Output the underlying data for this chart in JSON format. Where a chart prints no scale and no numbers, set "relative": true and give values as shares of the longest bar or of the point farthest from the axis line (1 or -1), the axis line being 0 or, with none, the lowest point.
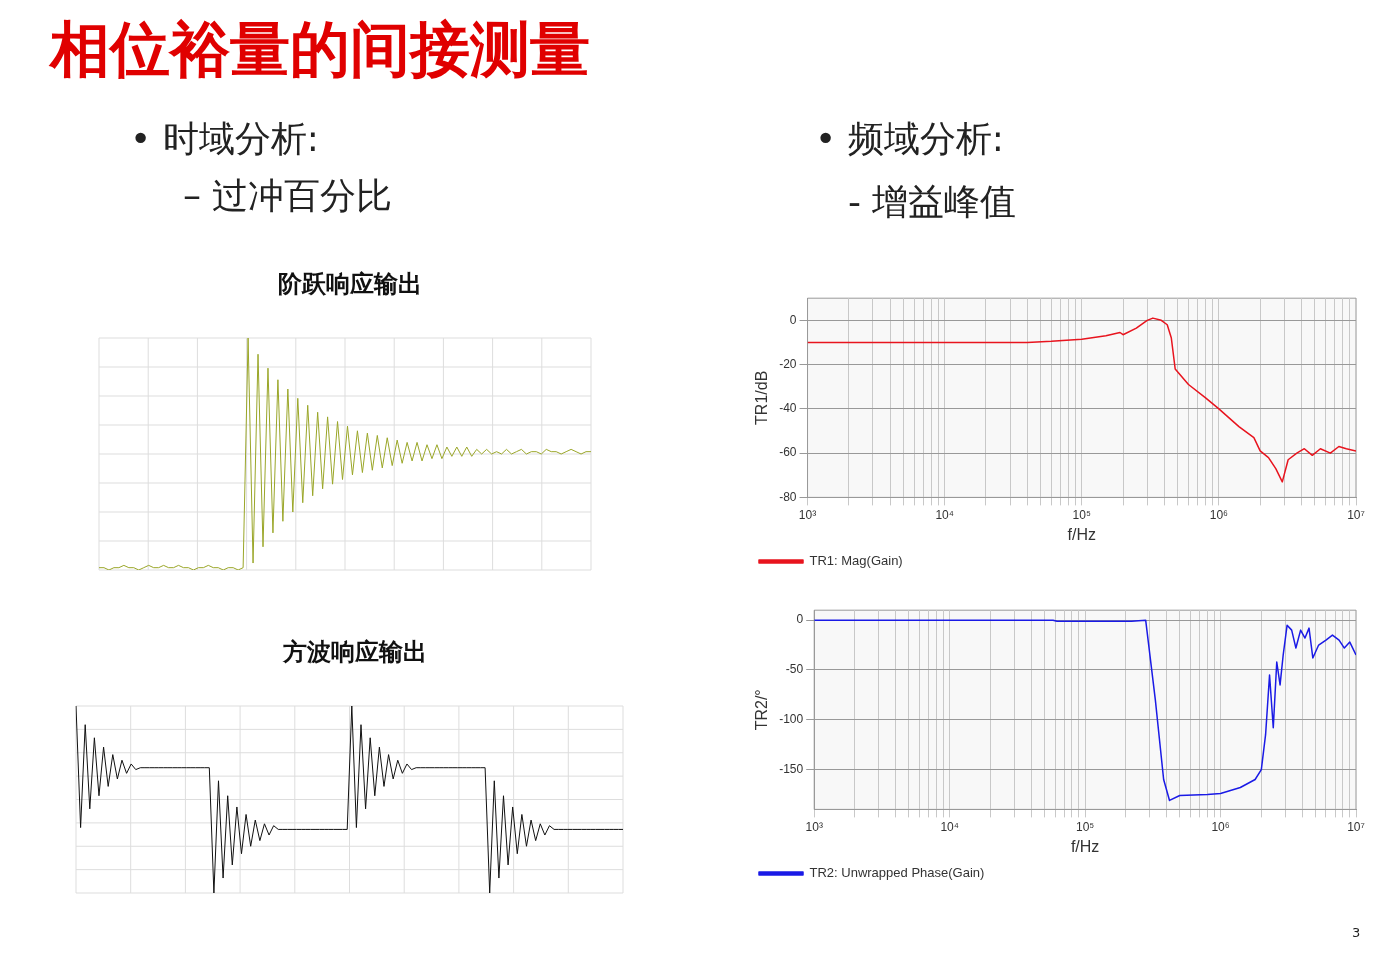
{
  "chart_data": [
    {
      "type": "other",
      "title": "相位裕量的间接测量",
      "annotations": [
        "• 时域分析:",
        "– 过冲百分比",
        "• 频域分析:",
        "- 增益峰值",
        "3"
      ]
    },
    {
      "type": "line",
      "title": "阶跃响应输出",
      "relative": true,
      "grid": true,
      "marker": "none",
      "categories": [
        null,
        null,
        null,
        null,
        null,
        null,
        null,
        null,
        null,
        null,
        null,
        null,
        null,
        null,
        null,
        null,
        null,
        null,
        null,
        null,
        null,
        null,
        null,
        null,
        null,
        null,
        null,
        null,
        null,
        null,
        null,
        null,
        null,
        null,
        null,
        null,
        null,
        null,
        null,
        null,
        null,
        null,
        null,
        null,
        null,
        null,
        null,
        null,
        null,
        null,
        null,
        null,
        null,
        null,
        null,
        null,
        null,
        null,
        null,
        null,
        null,
        null,
        null,
        null,
        null,
        null,
        null,
        null,
        null,
        null,
        null,
        null,
        null,
        null,
        null,
        null,
        null,
        null,
        null,
        null,
        null,
        null,
        null,
        null,
        null,
        null,
        null,
        null,
        null,
        null,
        null,
        null,
        null,
        null,
        null,
        null,
        null,
        null,
        null,
        null
      ],
      "series": [
        {
          "color": "#9aa628",
          "values": [
            0.01,
            0.01,
            0.0,
            0.01,
            0.01,
            0.02,
            0.01,
            0.01,
            0.0,
            0.01,
            0.02,
            0.01,
            0.01,
            0.02,
            0.01,
            0.01,
            0.02,
            0.01,
            0.01,
            0.0,
            0.01,
            0.01,
            0.02,
            0.01,
            0.01,
            0.0,
            0.01,
            0.01,
            0.0,
            0.01,
            1.0,
            0.03,
            0.93,
            0.1,
            0.87,
            0.16,
            0.82,
            0.21,
            0.78,
            0.25,
            0.74,
            0.29,
            0.71,
            0.32,
            0.68,
            0.35,
            0.66,
            0.37,
            0.64,
            0.39,
            0.62,
            0.41,
            0.6,
            0.42,
            0.59,
            0.43,
            0.58,
            0.44,
            0.57,
            0.45,
            0.56,
            0.46,
            0.55,
            0.47,
            0.55,
            0.47,
            0.54,
            0.48,
            0.54,
            0.48,
            0.53,
            0.49,
            0.53,
            0.49,
            0.53,
            0.49,
            0.52,
            0.5,
            0.52,
            0.5,
            0.51,
            0.5,
            0.52,
            0.5,
            0.51,
            0.52,
            0.5,
            0.51,
            0.51,
            0.5,
            0.52,
            0.51,
            0.51,
            0.5,
            0.51,
            0.52,
            0.51,
            0.5,
            0.51,
            0.51
          ]
        }
      ]
    },
    {
      "type": "line",
      "title": "方波响应输出",
      "relative": true,
      "grid": true,
      "marker": "none",
      "categories": [
        null,
        null,
        null,
        null,
        null,
        null,
        null,
        null,
        null,
        null,
        null,
        null,
        null,
        null,
        null,
        null,
        null,
        null,
        null,
        null,
        null,
        null,
        null,
        null,
        null,
        null,
        null,
        null,
        null,
        null,
        null,
        null,
        null,
        null,
        null,
        null,
        null,
        null,
        null,
        null,
        null,
        null,
        null,
        null,
        null,
        null,
        null,
        null,
        null,
        null,
        null,
        null,
        null,
        null,
        null,
        null,
        null,
        null,
        null,
        null,
        null,
        null,
        null,
        null,
        null,
        null,
        null,
        null,
        null,
        null,
        null,
        null,
        null,
        null,
        null,
        null,
        null,
        null,
        null,
        null,
        null,
        null,
        null,
        null,
        null,
        null,
        null,
        null,
        null,
        null,
        null,
        null,
        null,
        null,
        null,
        null,
        null,
        null,
        null,
        null,
        null,
        null,
        null,
        null,
        null,
        null,
        null,
        null,
        null,
        null,
        null,
        null,
        null,
        null,
        null,
        null,
        null,
        null,
        null,
        null
      ],
      "series": [
        {
          "color": "#111111",
          "values": [
            1.0,
            0.35,
            0.9,
            0.45,
            0.83,
            0.52,
            0.78,
            0.57,
            0.74,
            0.61,
            0.71,
            0.64,
            0.69,
            0.66,
            0.67,
            0.67,
            0.67,
            0.67,
            0.67,
            0.67,
            0.67,
            0.67,
            0.67,
            0.67,
            0.67,
            0.67,
            0.67,
            0.67,
            0.67,
            0.67,
            0.0,
            0.6,
            0.08,
            0.52,
            0.15,
            0.46,
            0.21,
            0.42,
            0.25,
            0.39,
            0.28,
            0.37,
            0.31,
            0.36,
            0.34,
            0.34,
            0.34,
            0.34,
            0.34,
            0.34,
            0.34,
            0.34,
            0.34,
            0.34,
            0.34,
            0.34,
            0.34,
            0.34,
            0.34,
            0.34,
            1.0,
            0.35,
            0.9,
            0.45,
            0.83,
            0.52,
            0.78,
            0.57,
            0.74,
            0.61,
            0.71,
            0.64,
            0.69,
            0.66,
            0.67,
            0.67,
            0.67,
            0.67,
            0.67,
            0.67,
            0.67,
            0.67,
            0.67,
            0.67,
            0.67,
            0.67,
            0.67,
            0.67,
            0.67,
            0.67,
            0.0,
            0.6,
            0.08,
            0.52,
            0.15,
            0.46,
            0.21,
            0.42,
            0.25,
            0.39,
            0.28,
            0.37,
            0.31,
            0.36,
            0.34,
            0.34,
            0.34,
            0.34,
            0.34,
            0.34,
            0.34,
            0.34,
            0.34,
            0.34,
            0.34,
            0.34,
            0.34,
            0.34,
            0.34,
            0.34
          ]
        }
      ]
    },
    {
      "type": "line",
      "xlabel": "f/Hz",
      "ylabel": "TR1/dB",
      "log": "x",
      "grid": true,
      "marker": "none",
      "legend": "bottom",
      "xlim": [
        1000,
        10000000
      ],
      "ylim": [
        -80,
        10
      ],
      "yticks": [
        -80,
        -60,
        -40,
        -20,
        0
      ],
      "xticks": [
        {
          "value": 1000,
          "label": "10³"
        },
        {
          "value": 2000,
          "label": null
        },
        {
          "value": 3000,
          "label": null
        },
        {
          "value": 4000,
          "label": null
        },
        {
          "value": 5000,
          "label": null
        },
        {
          "value": 6000,
          "label": null
        },
        {
          "value": 7000,
          "label": null
        },
        {
          "value": 8000,
          "label": null
        },
        {
          "value": 9000,
          "label": null
        },
        {
          "value": 10000,
          "label": "10⁴"
        },
        {
          "value": 20000,
          "label": null
        },
        {
          "value": 30000,
          "label": null
        },
        {
          "value": 40000,
          "label": null
        },
        {
          "value": 50000,
          "label": null
        },
        {
          "value": 60000,
          "label": null
        },
        {
          "value": 70000,
          "label": null
        },
        {
          "value": 80000,
          "label": null
        },
        {
          "value": 90000,
          "label": null
        },
        {
          "value": 100000,
          "label": "10⁵"
        },
        {
          "value": 200000,
          "label": null
        },
        {
          "value": 300000,
          "label": null
        },
        {
          "value": 400000,
          "label": null
        },
        {
          "value": 500000,
          "label": null
        },
        {
          "value": 600000,
          "label": null
        },
        {
          "value": 700000,
          "label": null
        },
        {
          "value": 800000,
          "label": null
        },
        {
          "value": 900000,
          "label": null
        },
        {
          "value": 1000000,
          "label": "10⁶"
        },
        {
          "value": 2000000,
          "label": null
        },
        {
          "value": 3000000,
          "label": null
        },
        {
          "value": 4000000,
          "label": null
        },
        {
          "value": 5000000,
          "label": null
        },
        {
          "value": 6000000,
          "label": null
        },
        {
          "value": 7000000,
          "label": null
        },
        {
          "value": 8000000,
          "label": null
        },
        {
          "value": 9000000,
          "label": null
        },
        {
          "value": 10000000,
          "label": "10⁷"
        }
      ],
      "x": [
        1000,
        10000,
        40000,
        60000,
        100000,
        150000,
        190000,
        200000,
        250000,
        300000,
        330000,
        380000,
        420000,
        450000,
        480000,
        600000,
        800000,
        1000000,
        1400000,
        1800000,
        2000000,
        2300000,
        2600000,
        2900000,
        3200000,
        3700000,
        4200000,
        4800000,
        5500000,
        6500000,
        7500000,
        8500000,
        10000000
      ],
      "series": [
        {
          "name": "TR1: Mag(Gain)",
          "color": "#e8141e",
          "values": [
            -10,
            -10,
            -10,
            -9.5,
            -8.5,
            -7,
            -5.5,
            -6.5,
            -3.5,
            0,
            1,
            0,
            -2,
            -8,
            -22,
            -29,
            -35,
            -40,
            -48,
            -53,
            -59,
            -62,
            -67,
            -73,
            -63,
            -60,
            -58,
            -61,
            -58,
            -60,
            -57,
            -58,
            -59
          ]
        }
      ]
    },
    {
      "type": "line",
      "xlabel": "f/Hz",
      "ylabel": "TR2/°",
      "log": "x",
      "grid": true,
      "marker": "none",
      "legend": "bottom",
      "xlim": [
        1000,
        10000000
      ],
      "ylim": [
        -190,
        10
      ],
      "yticks": [
        -150,
        -100,
        -50,
        0
      ],
      "xticks": [
        {
          "value": 1000,
          "label": "10³"
        },
        {
          "value": 2000,
          "label": null
        },
        {
          "value": 3000,
          "label": null
        },
        {
          "value": 4000,
          "label": null
        },
        {
          "value": 5000,
          "label": null
        },
        {
          "value": 6000,
          "label": null
        },
        {
          "value": 7000,
          "label": null
        },
        {
          "value": 8000,
          "label": null
        },
        {
          "value": 9000,
          "label": null
        },
        {
          "value": 10000,
          "label": "10⁴"
        },
        {
          "value": 20000,
          "label": null
        },
        {
          "value": 30000,
          "label": null
        },
        {
          "value": 40000,
          "label": null
        },
        {
          "value": 50000,
          "label": null
        },
        {
          "value": 60000,
          "label": null
        },
        {
          "value": 70000,
          "label": null
        },
        {
          "value": 80000,
          "label": null
        },
        {
          "value": 90000,
          "label": null
        },
        {
          "value": 100000,
          "label": "10⁵"
        },
        {
          "value": 200000,
          "label": null
        },
        {
          "value": 300000,
          "label": null
        },
        {
          "value": 400000,
          "label": null
        },
        {
          "value": 500000,
          "label": null
        },
        {
          "value": 600000,
          "label": null
        },
        {
          "value": 700000,
          "label": null
        },
        {
          "value": 800000,
          "label": null
        },
        {
          "value": 900000,
          "label": null
        },
        {
          "value": 1000000,
          "label": "10⁶"
        },
        {
          "value": 2000000,
          "label": null
        },
        {
          "value": 3000000,
          "label": null
        },
        {
          "value": 4000000,
          "label": null
        },
        {
          "value": 5000000,
          "label": null
        },
        {
          "value": 6000000,
          "label": null
        },
        {
          "value": 7000000,
          "label": null
        },
        {
          "value": 8000000,
          "label": null
        },
        {
          "value": 9000000,
          "label": null
        },
        {
          "value": 10000000,
          "label": "10⁷"
        }
      ],
      "x": [
        1000,
        58000,
        62000,
        220000,
        280000,
        330000,
        380000,
        420000,
        500000,
        800000,
        1000000,
        1400000,
        1800000,
        2000000,
        2150000,
        2300000,
        2450000,
        2600000,
        2750000,
        2900000,
        3100000,
        3350000,
        3600000,
        3900000,
        4200000,
        4500000,
        4800000,
        5300000,
        6000000,
        6700000,
        7500000,
        8200000,
        9000000,
        10000000
      ],
      "series": [
        {
          "name": "TR2: Unwrapped Phase(Gain)",
          "color": "#1a1ae6",
          "values": [
            0,
            0,
            -1,
            -1,
            0,
            -80,
            -160,
            -181,
            -176,
            -175,
            -174,
            -168,
            -160,
            -150,
            -115,
            -55,
            -108,
            -42,
            -65,
            -35,
            -5,
            -10,
            -28,
            -10,
            -18,
            -8,
            -38,
            -25,
            -20,
            -15,
            -20,
            -28,
            -22,
            -35
          ]
        }
      ]
    }
  ]
}
